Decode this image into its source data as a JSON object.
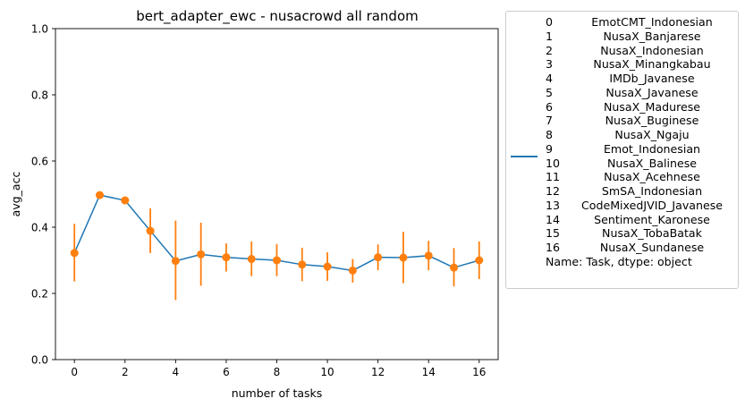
{
  "chart_data": {
    "type": "line",
    "title": "bert_adapter_ewc - nusacrowd all random",
    "xlabel": "number of tasks",
    "ylabel": "avg_acc",
    "xlim": [
      -0.75,
      16.75
    ],
    "ylim": [
      0.0,
      1.0
    ],
    "xticks": [
      0,
      2,
      4,
      6,
      8,
      10,
      12,
      14,
      16
    ],
    "yticks": [
      0.0,
      0.2,
      0.4,
      0.6,
      0.8,
      1.0
    ],
    "ytick_labels": [
      "0.0",
      "0.2",
      "0.4",
      "0.6",
      "0.8",
      "1.0"
    ],
    "grid": false,
    "legend_position": "outside right",
    "colors": {
      "line": "#1f77b4",
      "points": "#ff7f0e"
    },
    "series": [
      {
        "x": [
          0,
          1,
          2,
          3,
          4,
          5,
          6,
          7,
          8,
          9,
          10,
          11,
          12,
          13,
          14,
          15,
          16
        ],
        "y": [
          0.322,
          0.497,
          0.481,
          0.389,
          0.298,
          0.318,
          0.309,
          0.304,
          0.3,
          0.287,
          0.281,
          0.269,
          0.309,
          0.308,
          0.314,
          0.278,
          0.3
        ],
        "err_low": [
          0.236,
          0.497,
          0.481,
          0.322,
          0.18,
          0.223,
          0.266,
          0.252,
          0.252,
          0.237,
          0.238,
          0.233,
          0.27,
          0.231,
          0.27,
          0.221,
          0.243
        ],
        "err_high": [
          0.41,
          0.497,
          0.481,
          0.457,
          0.42,
          0.414,
          0.351,
          0.357,
          0.349,
          0.338,
          0.324,
          0.304,
          0.348,
          0.386,
          0.359,
          0.337,
          0.357
        ]
      }
    ]
  },
  "legend": {
    "rows": [
      {
        "idx": "0",
        "name": "EmotCMT_Indonesian"
      },
      {
        "idx": "1",
        "name": "NusaX_Banjarese"
      },
      {
        "idx": "2",
        "name": "NusaX_Indonesian"
      },
      {
        "idx": "3",
        "name": "NusaX_Minangkabau"
      },
      {
        "idx": "4",
        "name": "IMDb_Javanese"
      },
      {
        "idx": "5",
        "name": "NusaX_Javanese"
      },
      {
        "idx": "6",
        "name": "NusaX_Madurese"
      },
      {
        "idx": "7",
        "name": "NusaX_Buginese"
      },
      {
        "idx": "8",
        "name": "NusaX_Ngaju"
      },
      {
        "idx": "9",
        "name": "Emot_Indonesian"
      },
      {
        "idx": "10",
        "name": "NusaX_Balinese"
      },
      {
        "idx": "11",
        "name": "NusaX_Acehnese"
      },
      {
        "idx": "12",
        "name": "SmSA_Indonesian"
      },
      {
        "idx": "13",
        "name": "CodeMixedJVID_Javanese"
      },
      {
        "idx": "14",
        "name": "Sentiment_Karonese"
      },
      {
        "idx": "15",
        "name": "NusaX_TobaBatak"
      },
      {
        "idx": "16",
        "name": "NusaX_Sundanese"
      }
    ],
    "footer": "Name: Task, dtype: object"
  }
}
